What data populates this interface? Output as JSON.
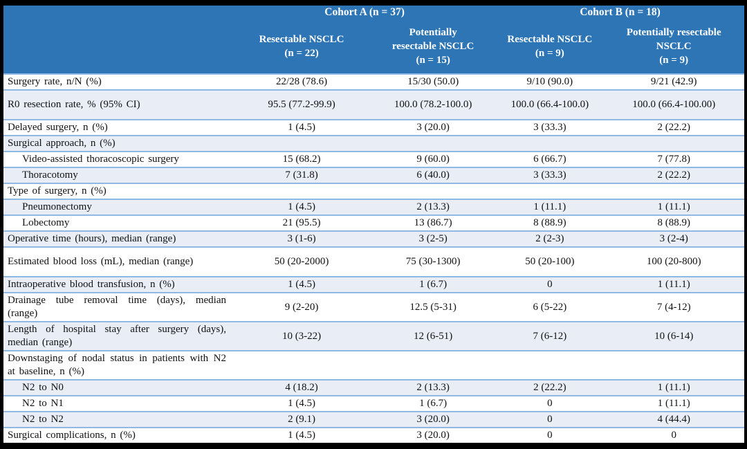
{
  "colors": {
    "header_bg": "#2E75B6",
    "stripe_bg": "#E8EDF6",
    "row_border": "#8FB9E3",
    "frame": "#000000",
    "header_text": "#FFFFFF"
  },
  "table": {
    "header": {
      "groups": [
        {
          "label": "Cohort A (n = 37)"
        },
        {
          "label": "Cohort B (n = 18)"
        }
      ],
      "columns": [
        "Resectable NSCLC\n(n = 22)",
        "Potentially\nresectable NSCLC\n(n = 15)",
        "Resectable NSCLC\n(n = 9)",
        "Potentially resectable\nNSCLC\n(n = 9)"
      ]
    },
    "rows": [
      {
        "label": "Surgery rate, n/N (%)",
        "values": [
          "22/28 (78.6)",
          "15/30 (50.0)",
          "9/10 (90.0)",
          "9/21 (42.9)"
        ],
        "indent": false,
        "tall": false
      },
      {
        "label": "R0 resection rate, % (95% CI)",
        "values": [
          "95.5 (77.2-99.9)",
          "100.0 (78.2-100.0)",
          "100.0 (66.4-100.0)",
          "100.0 (66.4-100.00)"
        ],
        "indent": false,
        "tall": true
      },
      {
        "label": "Delayed surgery, n (%)",
        "values": [
          "1 (4.5)",
          "3 (20.0)",
          "3 (33.3)",
          "2 (22.2)"
        ],
        "indent": false,
        "tall": false
      },
      {
        "label": "Surgical approach, n (%)",
        "values": [
          "",
          "",
          "",
          ""
        ],
        "indent": false,
        "tall": false
      },
      {
        "label": "Video-assisted thoracoscopic surgery",
        "values": [
          "15 (68.2)",
          "9 (60.0)",
          "6 (66.7)",
          "7 (77.8)"
        ],
        "indent": true,
        "tall": false
      },
      {
        "label": "Thoracotomy",
        "values": [
          "7 (31.8)",
          "6 (40.0)",
          "3 (33.3)",
          "2 (22.2)"
        ],
        "indent": true,
        "tall": false
      },
      {
        "label": "Type of surgery, n (%)",
        "values": [
          "",
          "",
          "",
          ""
        ],
        "indent": false,
        "tall": false
      },
      {
        "label": "Pneumonectomy",
        "values": [
          "1 (4.5)",
          "2 (13.3)",
          "1 (11.1)",
          "1 (11.1)"
        ],
        "indent": true,
        "tall": false
      },
      {
        "label": "Lobectomy",
        "values": [
          "21 (95.5)",
          "13 (86.7)",
          "8 (88.9)",
          "8 (88.9)"
        ],
        "indent": true,
        "tall": false
      },
      {
        "label": "Operative time (hours), median (range)",
        "values": [
          "3 (1-6)",
          "3 (2-5)",
          "2 (2-3)",
          "3 (2-4)"
        ],
        "indent": false,
        "tall": false
      },
      {
        "label": "Estimated blood loss (mL), median (range)",
        "values": [
          "50 (20-2000)",
          "75 (30-1300)",
          "50 (20-100)",
          "100 (20-800)"
        ],
        "indent": false,
        "tall": true
      },
      {
        "label": "Intraoperative blood transfusion, n (%)",
        "values": [
          "1 (4.5)",
          "1 (6.7)",
          "0",
          "1 (11.1)"
        ],
        "indent": false,
        "tall": false
      },
      {
        "label": "Drainage tube removal time (days), median (range)",
        "values": [
          "9 (2-20)",
          "12.5 (5-31)",
          "6 (5-22)",
          "7 (4-12)"
        ],
        "indent": false,
        "tall": false
      },
      {
        "label": "Length of hospital stay after surgery (days), median (range)",
        "values": [
          "10 (3-22)",
          "12 (6-51)",
          "7 (6-12)",
          "10 (6-14)"
        ],
        "indent": false,
        "tall": false
      },
      {
        "label": "Downstaging of nodal status in patients with N2 at baseline, n (%)",
        "values": [
          "",
          "",
          "",
          ""
        ],
        "indent": false,
        "tall": false
      },
      {
        "label": "N2 to N0",
        "values": [
          "4 (18.2)",
          "2 (13.3)",
          "2 (22.2)",
          "1 (11.1)"
        ],
        "indent": true,
        "tall": false
      },
      {
        "label": "N2 to N1",
        "values": [
          "1 (4.5)",
          "1 (6.7)",
          "0",
          "1 (11.1)"
        ],
        "indent": true,
        "tall": false
      },
      {
        "label": "N2 to N2",
        "values": [
          "2 (9.1)",
          "3 (20.0)",
          "0",
          "4 (44.4)"
        ],
        "indent": true,
        "tall": false
      },
      {
        "label": "Surgical complications, n (%)",
        "values": [
          "1 (4.5)",
          "3 (20.0)",
          "0",
          "0"
        ],
        "indent": false,
        "tall": false
      }
    ]
  }
}
